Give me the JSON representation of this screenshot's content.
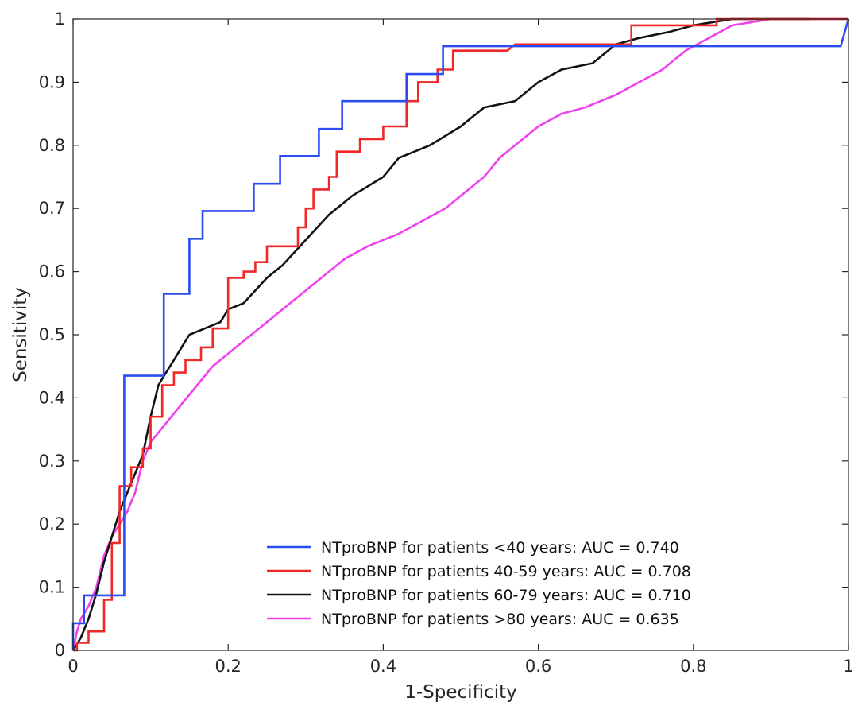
{
  "chart_data": {
    "type": "line",
    "title": "",
    "xlabel": "1-Specificity",
    "ylabel": "Sensitivity",
    "xlim": [
      0,
      1
    ],
    "ylim": [
      0,
      1
    ],
    "xticks": [
      "0",
      "0.2",
      "0.4",
      "0.6",
      "0.8",
      "1"
    ],
    "yticks": [
      "0",
      "0.1",
      "0.2",
      "0.3",
      "0.4",
      "0.5",
      "0.6",
      "0.7",
      "0.8",
      "0.9",
      "1"
    ],
    "grid": false,
    "legend_position": "bottom-right",
    "series": [
      {
        "name": "NTproBNP for patients <40 years: AUC = 0.740",
        "color": "#2b4cf0",
        "step": true,
        "points": [
          [
            0,
            0
          ],
          [
            0,
            0.043
          ],
          [
            0.014,
            0.043
          ],
          [
            0.014,
            0.087
          ],
          [
            0.066,
            0.087
          ],
          [
            0.066,
            0.435
          ],
          [
            0.117,
            0.435
          ],
          [
            0.117,
            0.565
          ],
          [
            0.15,
            0.565
          ],
          [
            0.15,
            0.652
          ],
          [
            0.167,
            0.652
          ],
          [
            0.167,
            0.696
          ],
          [
            0.233,
            0.696
          ],
          [
            0.233,
            0.739
          ],
          [
            0.267,
            0.739
          ],
          [
            0.267,
            0.783
          ],
          [
            0.317,
            0.783
          ],
          [
            0.317,
            0.826
          ],
          [
            0.347,
            0.826
          ],
          [
            0.347,
            0.87
          ],
          [
            0.43,
            0.87
          ],
          [
            0.43,
            0.913
          ],
          [
            0.477,
            0.913
          ],
          [
            0.477,
            0.957
          ],
          [
            0.99,
            0.957
          ],
          [
            1,
            1
          ]
        ]
      },
      {
        "name": "NTproBNP for patients 40-59 years: AUC = 0.708",
        "color": "#f02828",
        "step": true,
        "points": [
          [
            0,
            0
          ],
          [
            0.005,
            0
          ],
          [
            0.005,
            0.012
          ],
          [
            0.02,
            0.012
          ],
          [
            0.02,
            0.03
          ],
          [
            0.04,
            0.03
          ],
          [
            0.04,
            0.08
          ],
          [
            0.05,
            0.08
          ],
          [
            0.05,
            0.17
          ],
          [
            0.06,
            0.17
          ],
          [
            0.06,
            0.26
          ],
          [
            0.075,
            0.26
          ],
          [
            0.075,
            0.29
          ],
          [
            0.09,
            0.29
          ],
          [
            0.09,
            0.32
          ],
          [
            0.1,
            0.32
          ],
          [
            0.1,
            0.37
          ],
          [
            0.115,
            0.37
          ],
          [
            0.115,
            0.42
          ],
          [
            0.13,
            0.42
          ],
          [
            0.13,
            0.44
          ],
          [
            0.145,
            0.44
          ],
          [
            0.145,
            0.46
          ],
          [
            0.165,
            0.46
          ],
          [
            0.165,
            0.48
          ],
          [
            0.18,
            0.48
          ],
          [
            0.18,
            0.51
          ],
          [
            0.2,
            0.51
          ],
          [
            0.2,
            0.59
          ],
          [
            0.22,
            0.59
          ],
          [
            0.22,
            0.6
          ],
          [
            0.235,
            0.6
          ],
          [
            0.235,
            0.615
          ],
          [
            0.25,
            0.615
          ],
          [
            0.25,
            0.64
          ],
          [
            0.29,
            0.64
          ],
          [
            0.29,
            0.67
          ],
          [
            0.3,
            0.67
          ],
          [
            0.3,
            0.7
          ],
          [
            0.31,
            0.7
          ],
          [
            0.31,
            0.73
          ],
          [
            0.33,
            0.73
          ],
          [
            0.33,
            0.75
          ],
          [
            0.34,
            0.75
          ],
          [
            0.34,
            0.79
          ],
          [
            0.37,
            0.79
          ],
          [
            0.37,
            0.81
          ],
          [
            0.4,
            0.81
          ],
          [
            0.4,
            0.83
          ],
          [
            0.43,
            0.83
          ],
          [
            0.43,
            0.87
          ],
          [
            0.445,
            0.87
          ],
          [
            0.445,
            0.9
          ],
          [
            0.47,
            0.9
          ],
          [
            0.47,
            0.92
          ],
          [
            0.49,
            0.92
          ],
          [
            0.49,
            0.95
          ],
          [
            0.56,
            0.95
          ],
          [
            0.57,
            0.96
          ],
          [
            0.72,
            0.96
          ],
          [
            0.72,
            0.99
          ],
          [
            0.83,
            0.99
          ],
          [
            0.83,
            1
          ],
          [
            1,
            1
          ]
        ]
      },
      {
        "name": "NTproBNP for patients 60-79 years: AUC = 0.710",
        "color": "#111111",
        "step": false,
        "points": [
          [
            0,
            0
          ],
          [
            0.01,
            0.02
          ],
          [
            0.02,
            0.05
          ],
          [
            0.03,
            0.09
          ],
          [
            0.04,
            0.14
          ],
          [
            0.05,
            0.18
          ],
          [
            0.06,
            0.22
          ],
          [
            0.07,
            0.25
          ],
          [
            0.08,
            0.28
          ],
          [
            0.09,
            0.31
          ],
          [
            0.1,
            0.37
          ],
          [
            0.11,
            0.42
          ],
          [
            0.12,
            0.44
          ],
          [
            0.13,
            0.46
          ],
          [
            0.14,
            0.48
          ],
          [
            0.15,
            0.5
          ],
          [
            0.17,
            0.51
          ],
          [
            0.19,
            0.52
          ],
          [
            0.2,
            0.54
          ],
          [
            0.22,
            0.55
          ],
          [
            0.25,
            0.59
          ],
          [
            0.27,
            0.61
          ],
          [
            0.3,
            0.65
          ],
          [
            0.33,
            0.69
          ],
          [
            0.36,
            0.72
          ],
          [
            0.4,
            0.75
          ],
          [
            0.42,
            0.78
          ],
          [
            0.46,
            0.8
          ],
          [
            0.5,
            0.83
          ],
          [
            0.53,
            0.86
          ],
          [
            0.57,
            0.87
          ],
          [
            0.6,
            0.9
          ],
          [
            0.63,
            0.92
          ],
          [
            0.67,
            0.93
          ],
          [
            0.7,
            0.96
          ],
          [
            0.73,
            0.97
          ],
          [
            0.77,
            0.98
          ],
          [
            0.8,
            0.99
          ],
          [
            0.85,
            1
          ],
          [
            0.95,
            1
          ]
        ]
      },
      {
        "name": "NTproBNP for patients >80 years: AUC = 0.635",
        "color": "#f040f0",
        "step": false,
        "points": [
          [
            0,
            0
          ],
          [
            0.005,
            0.03
          ],
          [
            0.01,
            0.05
          ],
          [
            0.02,
            0.07
          ],
          [
            0.03,
            0.1
          ],
          [
            0.04,
            0.15
          ],
          [
            0.05,
            0.18
          ],
          [
            0.06,
            0.2
          ],
          [
            0.07,
            0.22
          ],
          [
            0.08,
            0.25
          ],
          [
            0.09,
            0.3
          ],
          [
            0.1,
            0.33
          ],
          [
            0.12,
            0.36
          ],
          [
            0.14,
            0.39
          ],
          [
            0.16,
            0.42
          ],
          [
            0.18,
            0.45
          ],
          [
            0.2,
            0.47
          ],
          [
            0.22,
            0.49
          ],
          [
            0.25,
            0.52
          ],
          [
            0.28,
            0.55
          ],
          [
            0.3,
            0.57
          ],
          [
            0.33,
            0.6
          ],
          [
            0.35,
            0.62
          ],
          [
            0.38,
            0.64
          ],
          [
            0.42,
            0.66
          ],
          [
            0.45,
            0.68
          ],
          [
            0.48,
            0.7
          ],
          [
            0.5,
            0.72
          ],
          [
            0.53,
            0.75
          ],
          [
            0.55,
            0.78
          ],
          [
            0.57,
            0.8
          ],
          [
            0.6,
            0.83
          ],
          [
            0.63,
            0.85
          ],
          [
            0.66,
            0.86
          ],
          [
            0.7,
            0.88
          ],
          [
            0.73,
            0.9
          ],
          [
            0.76,
            0.92
          ],
          [
            0.79,
            0.95
          ],
          [
            0.82,
            0.97
          ],
          [
            0.85,
            0.99
          ],
          [
            0.9,
            1
          ],
          [
            1,
            1
          ]
        ]
      }
    ]
  }
}
